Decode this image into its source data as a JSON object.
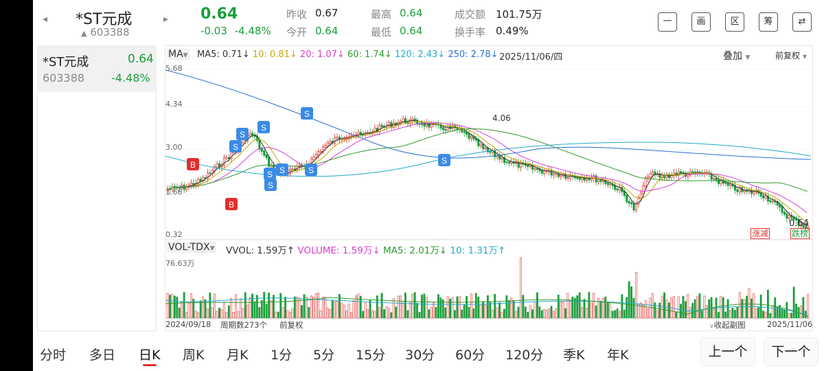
{
  "header": {
    "stock_name": "*ST元成",
    "code_prefix": "▲",
    "stock_code": "603388",
    "prev_arrow": "◂",
    "next_arrow": "▸",
    "price": "0.64",
    "change": "-0.03",
    "change_pct": "-4.48%",
    "quote": {
      "prev_close_label": "昨收",
      "prev_close": "0.67",
      "open_label": "今开",
      "open": "0.64",
      "high_label": "最高",
      "high": "0.64",
      "low_label": "最低",
      "low": "0.64",
      "amount_label": "成交额",
      "amount": "101.75万",
      "turnover_label": "换手率",
      "turnover": "0.49%"
    },
    "tools": [
      "一",
      "画",
      "区",
      "筹",
      "⇄"
    ]
  },
  "sidebar": {
    "items": [
      {
        "name": "*ST元成",
        "price": "0.64",
        "code": "603388",
        "change_pct": "-4.48%"
      }
    ]
  },
  "chart": {
    "indicator_select": "MA",
    "ma_legend": [
      {
        "text": "MA5: 0.71↓",
        "color": "#333333"
      },
      {
        "text": "10: 0.81↓",
        "color": "#c8a400"
      },
      {
        "text": "20: 1.07↓",
        "color": "#d63fd0"
      },
      {
        "text": "60: 1.74↓",
        "color": "#2f9a2f"
      },
      {
        "text": "120: 2.43↓",
        "color": "#22aacc"
      },
      {
        "text": "250: 2.78↓",
        "color": "#2a6fd6"
      }
    ],
    "date": "2025/11/06/四",
    "overlay_select": "叠加",
    "adjust_select": "前复权",
    "price_axis": [
      "5.68",
      "4.34",
      "3.00",
      "1.66",
      "0.32"
    ],
    "peak_label": "4.06",
    "last_label": "0.64",
    "gain_rank": "涨减",
    "loss_rank": "跌榜",
    "vol_select": "VOL-TDX",
    "vol_legend": [
      {
        "text": "VVOL: 1.59万↑",
        "color": "#333333"
      },
      {
        "text": "VOLUME: 1.59万↓",
        "color": "#d63fd0"
      },
      {
        "text": "MA5: 2.01万↓",
        "color": "#2f9a2f"
      },
      {
        "text": "10: 1.31万↑",
        "color": "#22aacc"
      }
    ],
    "vol_max": "76.63万",
    "start_date": "2024/09/18",
    "period_count": "周期数273个",
    "adjust_footer": "前复权",
    "collapse_label": "收起副图",
    "end_date": "2025/11/06",
    "signals_B": [
      "B",
      "B"
    ],
    "signals_S": [
      "S",
      "S",
      "S",
      "S",
      "S",
      "S",
      "S",
      "S",
      "S"
    ]
  },
  "bottom_tabs": [
    "分时",
    "多日",
    "日K",
    "周K",
    "月K",
    "1分",
    "5分",
    "15分",
    "30分",
    "60分",
    "120分",
    "季K",
    "年K"
  ],
  "active_tab": "日K",
  "prev_button": "上一个",
  "next_button": "下一个",
  "colors": {
    "up": "#e0302e",
    "down": "#1a9e3a",
    "accent": "#e0302e"
  }
}
